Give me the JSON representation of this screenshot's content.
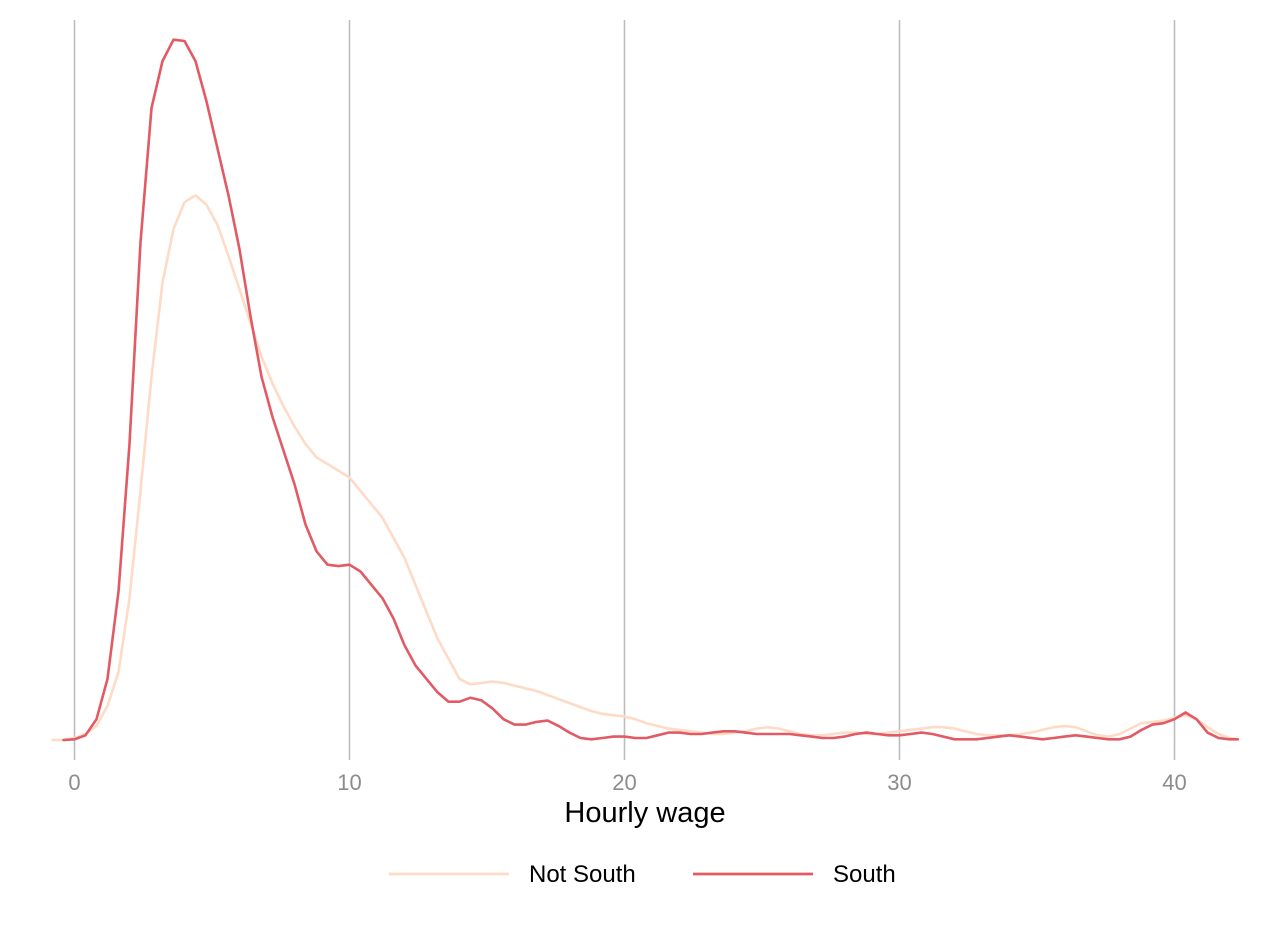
{
  "chart_data": {
    "type": "line",
    "title": "",
    "xlabel": "Hourly wage",
    "ylabel": "",
    "xlim": [
      -0.8,
      42.3
    ],
    "ylim": [
      0,
      0.1075
    ],
    "x_ticks": [
      0,
      10,
      20,
      30,
      40
    ],
    "x_tick_labels": [
      "0",
      "10",
      "20",
      "30",
      "40"
    ],
    "grid": "vertical major",
    "legend_position": "bottom",
    "series": [
      {
        "name": "Not South",
        "color": "#fddbc7",
        "x": [
          -0.8,
          -0.4,
          0.0,
          0.4,
          0.8,
          1.2,
          1.6,
          2.0,
          2.4,
          2.8,
          3.2,
          3.6,
          4.0,
          4.4,
          4.8,
          5.2,
          5.6,
          6.0,
          6.4,
          6.8,
          7.2,
          7.6,
          8.0,
          8.4,
          8.8,
          9.2,
          9.6,
          10.0,
          10.4,
          10.8,
          11.2,
          11.6,
          12.0,
          12.4,
          12.8,
          13.2,
          13.6,
          14.0,
          14.4,
          14.8,
          15.2,
          15.6,
          16.0,
          16.4,
          16.8,
          17.2,
          17.6,
          18.0,
          18.4,
          18.8,
          19.2,
          19.6,
          20.0,
          20.4,
          20.8,
          21.2,
          21.6,
          22.0,
          22.4,
          22.8,
          23.2,
          23.6,
          24.0,
          24.4,
          24.8,
          25.2,
          25.6,
          26.0,
          26.4,
          26.8,
          27.2,
          27.6,
          28.0,
          28.4,
          28.8,
          29.2,
          29.6,
          30.0,
          30.4,
          30.8,
          31.2,
          31.6,
          32.0,
          32.4,
          32.8,
          33.2,
          33.6,
          34.0,
          34.4,
          34.8,
          35.2,
          35.6,
          36.0,
          36.4,
          36.8,
          37.2,
          37.6,
          38.0,
          38.4,
          38.8,
          39.2,
          39.6,
          40.0,
          40.4,
          40.8,
          41.2,
          41.6,
          42.0,
          42.3
        ],
        "y": [
          0.0,
          0.0,
          0.0003,
          0.0009,
          0.0021,
          0.0051,
          0.0101,
          0.0211,
          0.0371,
          0.0541,
          0.0681,
          0.0761,
          0.0801,
          0.0811,
          0.0797,
          0.0767,
          0.0721,
          0.0671,
          0.0621,
          0.0571,
          0.0531,
          0.0497,
          0.0467,
          0.0441,
          0.0421,
          0.0411,
          0.0401,
          0.0391,
          0.0371,
          0.0351,
          0.0331,
          0.0301,
          0.0271,
          0.0231,
          0.0191,
          0.0151,
          0.0121,
          0.0091,
          0.0083,
          0.0085,
          0.0087,
          0.0085,
          0.0081,
          0.0077,
          0.0073,
          0.0067,
          0.0061,
          0.0055,
          0.0049,
          0.0043,
          0.0039,
          0.0037,
          0.0035,
          0.0031,
          0.0025,
          0.0021,
          0.0017,
          0.0015,
          0.0013,
          0.0011,
          0.0009,
          0.0009,
          0.0011,
          0.0013,
          0.0017,
          0.0019,
          0.0017,
          0.0013,
          0.0009,
          0.0007,
          0.0007,
          0.0009,
          0.0011,
          0.0011,
          0.0009,
          0.0009,
          0.0011,
          0.0013,
          0.0015,
          0.0017,
          0.0019,
          0.0019,
          0.0017,
          0.0013,
          0.0009,
          0.0007,
          0.0007,
          0.0007,
          0.0009,
          0.0011,
          0.0015,
          0.0019,
          0.0021,
          0.0019,
          0.0013,
          0.0007,
          0.0005,
          0.0009,
          0.0017,
          0.0025,
          0.0027,
          0.0029,
          0.0033,
          0.0037,
          0.0031,
          0.0019,
          0.0009,
          0.0003,
          0.0001
        ]
      },
      {
        "name": "South",
        "color": "#e15a64",
        "x": [
          -0.4,
          0.0,
          0.4,
          0.8,
          1.2,
          1.6,
          2.0,
          2.4,
          2.8,
          3.2,
          3.6,
          4.0,
          4.4,
          4.8,
          5.2,
          5.6,
          6.0,
          6.4,
          6.8,
          7.2,
          7.6,
          8.0,
          8.4,
          8.8,
          9.2,
          9.6,
          10.0,
          10.4,
          10.8,
          11.2,
          11.6,
          12.0,
          12.4,
          12.8,
          13.2,
          13.6,
          14.0,
          14.4,
          14.8,
          15.2,
          15.6,
          16.0,
          16.4,
          16.8,
          17.2,
          17.6,
          18.0,
          18.4,
          18.8,
          19.2,
          19.6,
          20.0,
          20.4,
          20.8,
          21.2,
          21.6,
          22.0,
          22.4,
          22.8,
          23.2,
          23.6,
          24.0,
          24.4,
          24.8,
          25.2,
          25.6,
          26.0,
          26.4,
          26.8,
          27.2,
          27.6,
          28.0,
          28.4,
          28.8,
          29.2,
          29.6,
          30.0,
          30.4,
          30.8,
          31.2,
          31.6,
          32.0,
          32.4,
          32.8,
          33.2,
          33.6,
          34.0,
          34.4,
          34.8,
          35.2,
          35.6,
          36.0,
          36.4,
          36.8,
          37.2,
          37.6,
          38.0,
          38.4,
          38.8,
          39.2,
          39.6,
          40.0,
          40.4,
          40.8,
          41.2,
          41.6,
          42.0,
          42.3
        ],
        "y": [
          0.0,
          0.0001,
          0.0007,
          0.0031,
          0.0091,
          0.0221,
          0.0441,
          0.0741,
          0.0941,
          0.1011,
          0.1043,
          0.1041,
          0.1011,
          0.0951,
          0.0881,
          0.0811,
          0.0731,
          0.0631,
          0.0541,
          0.0481,
          0.0431,
          0.0381,
          0.0321,
          0.0281,
          0.0261,
          0.0259,
          0.0261,
          0.0251,
          0.0231,
          0.0211,
          0.0181,
          0.0141,
          0.0111,
          0.0091,
          0.0071,
          0.0057,
          0.0057,
          0.0063,
          0.0059,
          0.0047,
          0.0031,
          0.0023,
          0.0023,
          0.0027,
          0.0029,
          0.0021,
          0.0011,
          0.0003,
          0.0001,
          0.0003,
          0.0005,
          0.0005,
          0.0003,
          0.0003,
          0.0007,
          0.0011,
          0.0011,
          0.0009,
          0.0009,
          0.0011,
          0.0013,
          0.0013,
          0.0011,
          0.0009,
          0.0009,
          0.0009,
          0.0009,
          0.0007,
          0.0005,
          0.0003,
          0.0003,
          0.0005,
          0.0009,
          0.0011,
          0.0009,
          0.0007,
          0.0007,
          0.0009,
          0.0011,
          0.0009,
          0.0005,
          0.0001,
          0.0001,
          0.0001,
          0.0003,
          0.0005,
          0.0007,
          0.0005,
          0.0003,
          0.0001,
          0.0003,
          0.0005,
          0.0007,
          0.0005,
          0.0003,
          0.0001,
          0.0001,
          0.0005,
          0.0015,
          0.0023,
          0.0025,
          0.0031,
          0.0041,
          0.0031,
          0.0011,
          0.0003,
          0.0001,
          0.0001
        ]
      }
    ]
  }
}
